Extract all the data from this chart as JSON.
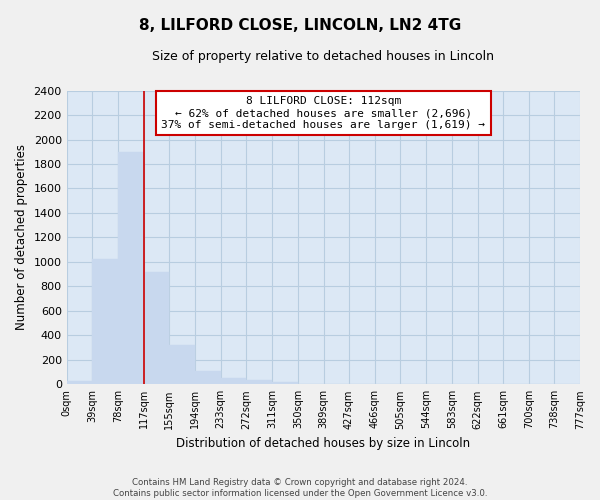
{
  "title": "8, LILFORD CLOSE, LINCOLN, LN2 4TG",
  "subtitle": "Size of property relative to detached houses in Lincoln",
  "xlabel": "Distribution of detached houses by size in Lincoln",
  "ylabel": "Number of detached properties",
  "bar_color": "#c8d8ee",
  "bar_edge_color": "#c8d8ee",
  "bin_edges": [
    0,
    39,
    78,
    117,
    155,
    194,
    233,
    272,
    311,
    350,
    389,
    427,
    466,
    505,
    544,
    583,
    622,
    661,
    700,
    738,
    777
  ],
  "bar_heights": [
    25,
    1020,
    1900,
    920,
    320,
    110,
    55,
    35,
    20,
    0,
    0,
    0,
    0,
    0,
    0,
    0,
    0,
    0,
    0,
    0
  ],
  "tick_labels": [
    "0sqm",
    "39sqm",
    "78sqm",
    "117sqm",
    "155sqm",
    "194sqm",
    "233sqm",
    "272sqm",
    "311sqm",
    "350sqm",
    "389sqm",
    "427sqm",
    "466sqm",
    "505sqm",
    "544sqm",
    "583sqm",
    "622sqm",
    "661sqm",
    "700sqm",
    "738sqm",
    "777sqm"
  ],
  "ylim": [
    0,
    2400
  ],
  "yticks": [
    0,
    200,
    400,
    600,
    800,
    1000,
    1200,
    1400,
    1600,
    1800,
    2000,
    2200,
    2400
  ],
  "red_line_x": 117,
  "annotation_title": "8 LILFORD CLOSE: 112sqm",
  "annotation_line1": "← 62% of detached houses are smaller (2,696)",
  "annotation_line2": "37% of semi-detached houses are larger (1,619) →",
  "footer_line1": "Contains HM Land Registry data © Crown copyright and database right 2024.",
  "footer_line2": "Contains public sector information licensed under the Open Government Licence v3.0.",
  "background_color": "#f0f0f0",
  "plot_bg_color": "#dce8f5",
  "grid_color": "#b8cde0",
  "annotation_box_color": "#ffffff",
  "annotation_box_edge": "#cc0000",
  "red_line_color": "#cc0000"
}
